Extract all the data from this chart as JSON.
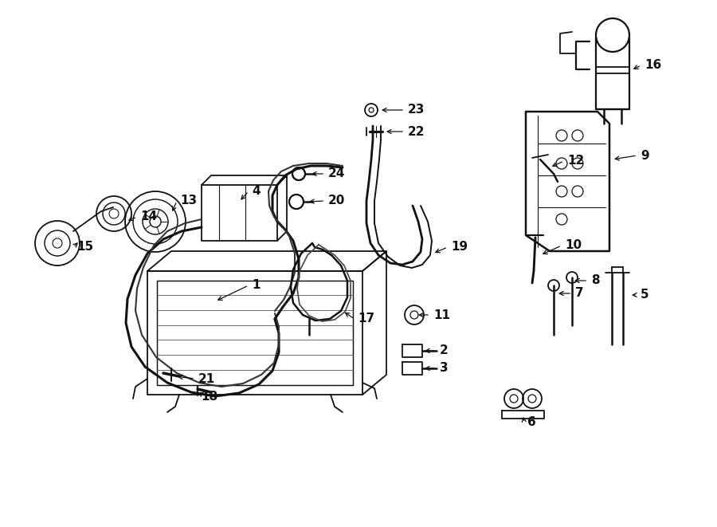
{
  "bg_color": "#ffffff",
  "line_color": "#111111",
  "lw": 1.3,
  "fig_width": 9.0,
  "fig_height": 6.61,
  "dpi": 100,
  "xlim": [
    0,
    900
  ],
  "ylim": [
    0,
    661
  ]
}
